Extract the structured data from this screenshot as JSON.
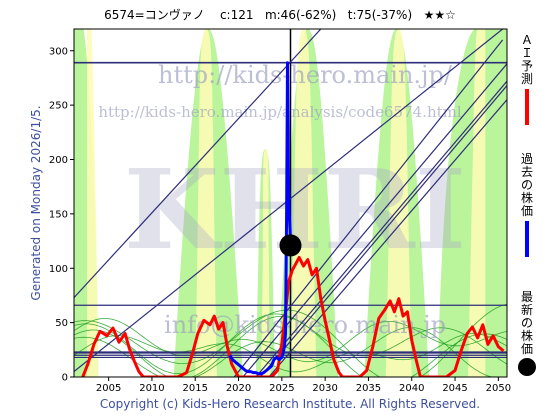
{
  "title": "6574=コンヴァノ    c:121   m:46(-62%)   t:75(-37%)   ★★☆",
  "side_text": "Generated on Monday 2026/1/5.",
  "copyright": "Copyright (c) Kids-Hero Research Institute. All Rights Reserved.",
  "watermarks": {
    "url_main": "http://kids-hero.main.jp/",
    "url_analysis": "http://kids-hero.main.jp/analysis/code6574.html",
    "big": "KHRI",
    "email": "info@kids-hero.main.jp"
  },
  "legend": [
    {
      "label": "ＡＩ予測",
      "color": "#ff0000",
      "marker": "line"
    },
    {
      "label": "過去の株価",
      "color": "#0000ff",
      "marker": "line"
    },
    {
      "label": "最新の株価",
      "color": "#000000",
      "marker": "dot"
    }
  ],
  "colors": {
    "green_band": "#aef28a",
    "yellow_band": "#fdfcb6",
    "ai": "#ff0000",
    "price": "#0000ff",
    "trend": "#2e2e7a",
    "cycle": "#1c9c1c",
    "watermark_side": "#3d4f9f"
  },
  "chart_data": {
    "type": "line",
    "xlim": [
      2001,
      2051
    ],
    "ylim": [
      0,
      320
    ],
    "x_ticks": [
      2005,
      2010,
      2015,
      2020,
      2025,
      2030,
      2035,
      2040,
      2045,
      2050
    ],
    "y_ticks": [
      0,
      50,
      100,
      150,
      200,
      250,
      300
    ],
    "latest": {
      "x": 2026.0,
      "y": 121
    },
    "hlines": [
      289,
      66,
      23,
      20,
      18
    ],
    "vline": 2026.0,
    "bands": [
      {
        "x0": 2001.0,
        "x1": 2003.8,
        "kind": "green",
        "top_shape": "fall"
      },
      {
        "x0": 2002.5,
        "x1": 2003.8,
        "kind": "yellow",
        "top_shape": "fall"
      },
      {
        "x0": 2012.5,
        "x1": 2020.5,
        "kind": "green",
        "top_shape": "hill"
      },
      {
        "x0": 2015.0,
        "x1": 2017.5,
        "kind": "yellow",
        "top_shape": "hill"
      },
      {
        "x0": 2022.0,
        "x1": 2024.2,
        "kind": "green",
        "top_shape": "low"
      },
      {
        "x0": 2022.6,
        "x1": 2023.7,
        "kind": "yellow",
        "top_shape": "low"
      },
      {
        "x0": 2024.5,
        "x1": 2031.5,
        "kind": "green",
        "top_shape": "hill"
      },
      {
        "x0": 2026.0,
        "x1": 2029.0,
        "kind": "yellow",
        "top_shape": "hill"
      },
      {
        "x0": 2034.5,
        "x1": 2042.0,
        "kind": "green",
        "top_shape": "hill"
      },
      {
        "x0": 2037.0,
        "x1": 2040.0,
        "kind": "yellow",
        "top_shape": "hill"
      },
      {
        "x0": 2043.0,
        "x1": 2051.0,
        "kind": "green",
        "top_shape": "rise"
      },
      {
        "x0": 2046.5,
        "x1": 2048.5,
        "kind": "yellow",
        "top_shape": "rise"
      }
    ],
    "trend_lines": [
      {
        "x1": 2001.0,
        "y1": 73,
        "x2": 2029.5,
        "y2": 320
      },
      {
        "x1": 2001.0,
        "y1": 5,
        "x2": 2050.5,
        "y2": 320
      },
      {
        "x1": 2019.5,
        "y1": 0,
        "x2": 2050.5,
        "y2": 310
      },
      {
        "x1": 2020.5,
        "y1": 0,
        "x2": 2051.0,
        "y2": 288
      },
      {
        "x1": 2022.0,
        "y1": 0,
        "x2": 2051.0,
        "y2": 272
      },
      {
        "x1": 2022.5,
        "y1": 0,
        "x2": 2051.0,
        "y2": 268
      },
      {
        "x1": 2023.5,
        "y1": 0,
        "x2": 2051.0,
        "y2": 255
      },
      {
        "x1": 2001.0,
        "y1": 22,
        "x2": 2051.0,
        "y2": 22
      }
    ],
    "series": [
      {
        "name": "ＡＩ予測",
        "color": "#ff0000",
        "width": 3,
        "x": [
          2002.0,
          2002.6,
          2003.3,
          2004.0,
          2004.8,
          2005.5,
          2006.2,
          2006.9,
          2007.4,
          2008.0,
          2008.5,
          2009.0,
          2010.0,
          2011.0,
          2012.0,
          2013.0,
          2014.0,
          2014.7,
          2015.3,
          2016.0,
          2016.7,
          2017.2,
          2017.7,
          2018.2,
          2018.7,
          2019.2,
          2020.0,
          2021.0,
          2022.0,
          2023.0,
          2023.8,
          2024.5,
          2025.0,
          2025.4,
          2025.8,
          2026.2,
          2026.6,
          2027.0,
          2027.5,
          2028.0,
          2028.5,
          2029.0,
          2029.5,
          2030.0,
          2030.5,
          2031.0,
          2031.6,
          2032.0,
          2033.0,
          2034.0,
          2034.8,
          2035.5,
          2036.2,
          2036.9,
          2037.5,
          2038.0,
          2038.5,
          2039.0,
          2039.5,
          2040.0,
          2040.5,
          2041.0,
          2042.0,
          2043.0,
          2044.0,
          2045.0,
          2045.7,
          2046.4,
          2047.0,
          2047.6,
          2048.2,
          2048.8,
          2049.4,
          2050.0,
          2050.6
        ],
        "y": [
          0,
          12,
          30,
          42,
          38,
          45,
          32,
          40,
          26,
          14,
          5,
          0,
          0,
          0,
          0,
          0,
          4,
          22,
          40,
          52,
          48,
          56,
          44,
          50,
          28,
          12,
          0,
          0,
          0,
          0,
          0,
          6,
          30,
          58,
          88,
          98,
          104,
          110,
          102,
          108,
          94,
          100,
          72,
          52,
          34,
          16,
          4,
          0,
          0,
          0,
          6,
          28,
          54,
          62,
          70,
          60,
          72,
          56,
          60,
          34,
          16,
          0,
          0,
          0,
          0,
          6,
          24,
          40,
          46,
          36,
          48,
          30,
          38,
          28,
          24
        ]
      },
      {
        "name": "過去の株価",
        "color": "#0000ff",
        "width": 3,
        "x": [
          2019.0,
          2019.3,
          2019.6,
          2019.9,
          2020.2,
          2020.5,
          2020.8,
          2021.1,
          2021.4,
          2021.7,
          2022.0,
          2022.3,
          2022.6,
          2022.9,
          2023.2,
          2023.5,
          2023.8,
          2024.1,
          2024.4,
          2024.7,
          2025.0,
          2025.15,
          2025.3,
          2025.42,
          2025.55,
          2025.65,
          2025.75,
          2025.85,
          2025.95,
          2026.0
        ],
        "y": [
          20,
          16,
          14,
          12,
          10,
          8,
          6,
          5,
          5,
          4,
          4,
          3,
          3,
          4,
          6,
          8,
          10,
          16,
          18,
          16,
          18,
          22,
          28,
          40,
          150,
          289,
          190,
          150,
          135,
          121
        ]
      }
    ]
  }
}
